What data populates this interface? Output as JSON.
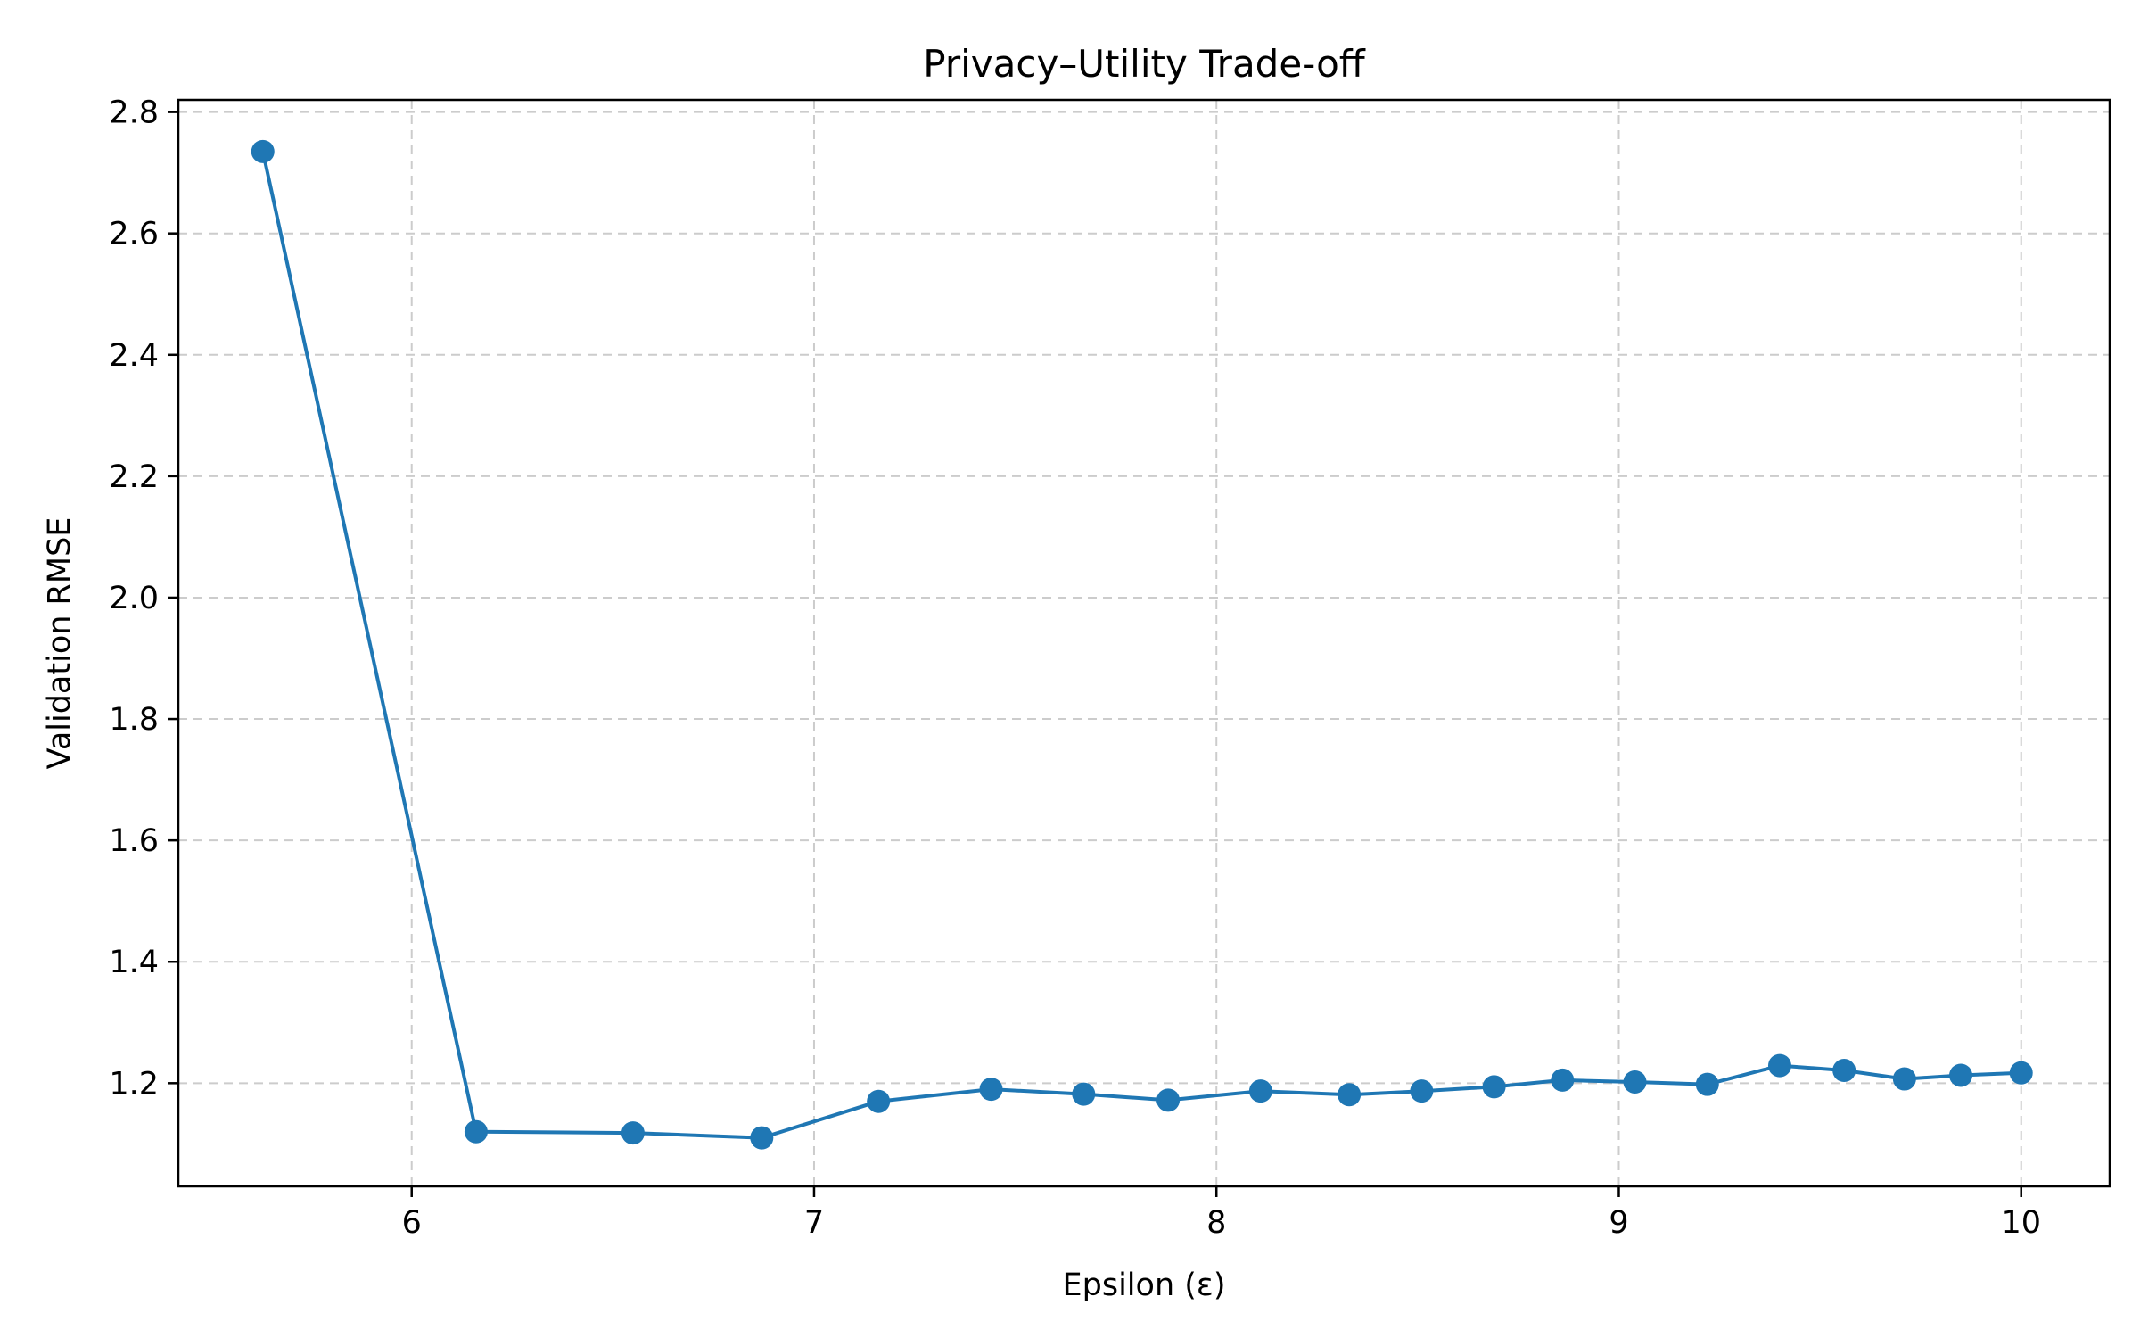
{
  "chart_data": {
    "type": "line",
    "title": "Privacy–Utility Trade-off",
    "xlabel": "Epsilon (ε)",
    "ylabel": "Validation RMSE",
    "xlim": [
      5.42,
      10.22
    ],
    "ylim": [
      1.03,
      2.82
    ],
    "xticks": [
      6,
      7,
      8,
      9,
      10
    ],
    "xtick_labels": [
      "6",
      "7",
      "8",
      "9",
      "10"
    ],
    "yticks": [
      1.2,
      1.4,
      1.6,
      1.8,
      2.0,
      2.2,
      2.4,
      2.6,
      2.8
    ],
    "ytick_labels": [
      "1.2",
      "1.4",
      "1.6",
      "1.8",
      "2.0",
      "2.2",
      "2.4",
      "2.6",
      "2.8"
    ],
    "grid": true,
    "grid_style": "dashed",
    "marker": "circle",
    "series": [
      {
        "color": "#1f77b4",
        "x": [
          5.63,
          6.16,
          6.55,
          6.87,
          7.16,
          7.44,
          7.67,
          7.88,
          8.11,
          8.33,
          8.51,
          8.69,
          8.86,
          9.04,
          9.22,
          9.4,
          9.56,
          9.71,
          9.85,
          10.0
        ],
        "y": [
          2.735,
          1.12,
          1.118,
          1.11,
          1.17,
          1.19,
          1.182,
          1.172,
          1.187,
          1.181,
          1.187,
          1.194,
          1.205,
          1.202,
          1.198,
          1.229,
          1.221,
          1.207,
          1.213,
          1.217
        ]
      }
    ]
  }
}
